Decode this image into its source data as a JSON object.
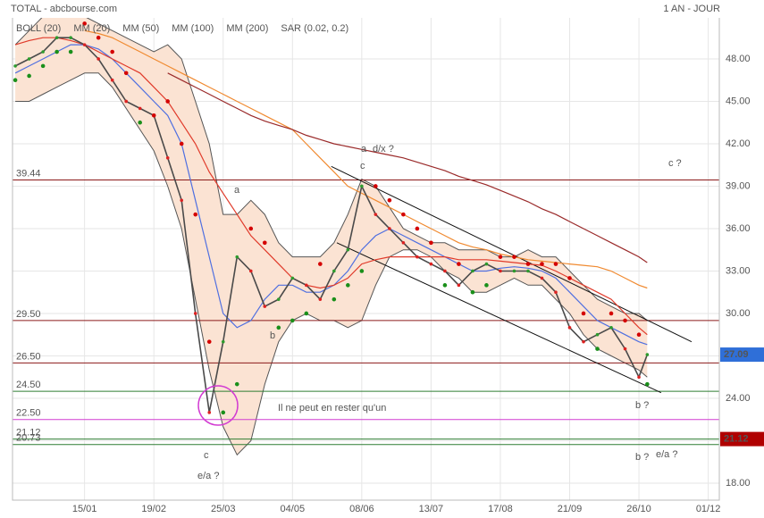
{
  "chart_data": {
    "type": "line",
    "title": "TOTAL - abcbourse.com",
    "subtitle": "1 AN - JOUR",
    "x": [
      -15,
      -10,
      -5,
      0,
      5,
      10,
      15,
      20,
      25,
      30,
      35,
      40,
      45,
      50,
      55,
      60,
      65,
      70,
      75,
      80,
      85,
      90,
      95,
      100,
      105,
      110,
      115,
      120,
      125,
      130,
      135,
      140,
      145,
      150,
      155,
      160,
      165,
      170,
      175,
      180,
      185,
      190,
      195,
      200,
      205,
      210,
      213
    ],
    "xlim": [
      -16,
      239
    ],
    "xticks": [
      {
        "value": 10,
        "label": "15/01"
      },
      {
        "value": 35,
        "label": "19/02"
      },
      {
        "value": 60,
        "label": "25/03"
      },
      {
        "value": 85,
        "label": "04/05"
      },
      {
        "value": 110,
        "label": "08/06"
      },
      {
        "value": 135,
        "label": "13/07"
      },
      {
        "value": 160,
        "label": "17/08"
      },
      {
        "value": 185,
        "label": "21/09"
      },
      {
        "value": 210,
        "label": "26/10"
      },
      {
        "value": 235,
        "label": "01/12"
      }
    ],
    "ylim": [
      16.8,
      51.85
    ],
    "yticks": [
      {
        "value": 18,
        "label": "18.00"
      },
      {
        "value": 21,
        "label": "21.00"
      },
      {
        "value": 24,
        "label": "24.00"
      },
      {
        "value": 27,
        "label": "27.00"
      },
      {
        "value": 30,
        "label": "30.00"
      },
      {
        "value": 33,
        "label": "33.00"
      },
      {
        "value": 36,
        "label": "36.00"
      },
      {
        "value": 39,
        "label": "39.00"
      },
      {
        "value": 42,
        "label": "42.00"
      },
      {
        "value": 45,
        "label": "45.00"
      },
      {
        "value": 48,
        "label": "48.00"
      }
    ],
    "grid": true,
    "series": [
      {
        "color": "#4a4a4a",
        "values": [
          47.5,
          48,
          48.5,
          49.5,
          49.5,
          49,
          48,
          46.5,
          45,
          44.5,
          44,
          41,
          38,
          30,
          23,
          28,
          34,
          33,
          30.5,
          31,
          32.5,
          32,
          31,
          33,
          34.5,
          39,
          37,
          36,
          35,
          34,
          33.5,
          33,
          32,
          33,
          33.5,
          33,
          33,
          33,
          32.5,
          31.5,
          29,
          28,
          28.5,
          29,
          27.5,
          25.5,
          27.09
        ]
      },
      {
        "name": "MM (20)",
        "color": "#4f6fe0",
        "values": [
          47,
          47.5,
          48,
          48.5,
          49,
          49,
          48.7,
          48,
          47,
          46,
          45,
          44,
          42,
          38,
          34,
          30,
          29,
          29.5,
          31,
          32,
          32,
          31.5,
          31.5,
          32,
          33,
          34.5,
          35.5,
          36,
          35.5,
          35,
          34.5,
          34,
          33.5,
          33,
          33,
          33.2,
          33.3,
          33.2,
          33,
          32.5,
          31.5,
          30.5,
          29.5,
          29,
          28.5,
          28,
          27.8
        ]
      },
      {
        "name": "MM (50)",
        "color": "#e03a2a",
        "values": [
          49,
          49.3,
          49.5,
          49.5,
          49.3,
          49,
          48.5,
          48,
          47.5,
          47,
          46,
          45,
          43.5,
          42,
          40,
          38.5,
          37,
          35.5,
          34.5,
          33.5,
          32.5,
          32,
          31.8,
          32,
          32.5,
          33.5,
          33.8,
          34,
          34,
          34,
          34,
          34,
          33.8,
          33.8,
          33.8,
          33.7,
          33.6,
          33.5,
          33.4,
          33,
          32.5,
          32,
          31.5,
          31,
          30,
          29,
          28.5
        ]
      },
      {
        "name": "MM (100)",
        "color": "#f08a30",
        "values": [
          null,
          null,
          null,
          null,
          null,
          50,
          49.8,
          49.5,
          49,
          48.5,
          48,
          47.5,
          47,
          46.5,
          46,
          45.5,
          45,
          44.5,
          44,
          43.5,
          43,
          42,
          41,
          40,
          39,
          38.5,
          38,
          37.5,
          37,
          36.5,
          36,
          35.5,
          35,
          34.7,
          34.5,
          34.2,
          34,
          33.8,
          33.7,
          33.6,
          33.5,
          33.4,
          33.3,
          33,
          32.5,
          32,
          31.8
        ]
      },
      {
        "name": "MM (200)",
        "color": "#9a2a2a",
        "values": [
          null,
          null,
          null,
          null,
          null,
          null,
          null,
          null,
          null,
          null,
          null,
          47,
          46.5,
          46,
          45.5,
          45,
          44.5,
          44,
          43.6,
          43.3,
          43,
          42.6,
          42.3,
          42,
          41.8,
          41.6,
          41.4,
          41.2,
          41,
          40.7,
          40.4,
          40.1,
          39.7,
          39.4,
          39.1,
          38.7,
          38.3,
          37.9,
          37.4,
          37,
          36.5,
          36,
          35.5,
          35,
          34.5,
          34,
          33.6
        ]
      }
    ],
    "bands": {
      "name": "BOLL (20)",
      "color": "#555555",
      "fill": "#fbe3d3",
      "upper": [
        49,
        50,
        51,
        51.5,
        51.5,
        51,
        50.5,
        50,
        49.5,
        49,
        48.5,
        49,
        48,
        45,
        42,
        37,
        37,
        38,
        37,
        35,
        34,
        34,
        34,
        35,
        37,
        39.5,
        39,
        37.5,
        36,
        35.5,
        35,
        35,
        34.5,
        34.5,
        34.5,
        34,
        34,
        34.5,
        34,
        34,
        33,
        32,
        31,
        30.5,
        30,
        30,
        29.5
      ],
      "lower": [
        45,
        45,
        45.5,
        46,
        46.5,
        47,
        47,
        46,
        44.5,
        43,
        41.5,
        39,
        36,
        31,
        26,
        22,
        20,
        21,
        25,
        28,
        29.5,
        30,
        29.5,
        29.5,
        29,
        29.5,
        32,
        34,
        34.5,
        34.5,
        34,
        33,
        32.5,
        31.5,
        31.5,
        32,
        32.5,
        32,
        32,
        31,
        30,
        28.5,
        27.5,
        27,
        26.5,
        26,
        25.5
      ]
    },
    "sar": {
      "name": "SAR (0.02, 0.2)",
      "color": "#d40000",
      "color_below": "#1a8f1a",
      "values": [
        46.5,
        46.8,
        47.5,
        48.5,
        48.5,
        50.5,
        49.5,
        48.5,
        47,
        43.5,
        44,
        45,
        42,
        37,
        28,
        23,
        25,
        36,
        35,
        29,
        29.5,
        30,
        33.5,
        31,
        32,
        33,
        39,
        38,
        37,
        36,
        35,
        32,
        33.5,
        31.5,
        32,
        34,
        34,
        33.5,
        33.5,
        33.5,
        32.5,
        30,
        27.5,
        30,
        29.5,
        28.5,
        25
      ]
    },
    "levels": [
      {
        "value": 39.44,
        "label": "39.44",
        "color": "#8b1a1a"
      },
      {
        "value": 29.5,
        "label": "29.50",
        "color": "#8b1a1a"
      },
      {
        "value": 26.5,
        "label": "26.50",
        "color": "#8b1a1a"
      },
      {
        "value": 24.5,
        "label": "24.50",
        "color": "#2e7d32"
      },
      {
        "value": 22.5,
        "label": "22.50",
        "color": "#d23cd2"
      },
      {
        "value": 21.12,
        "label": "21.12",
        "color": "#2e7d32"
      },
      {
        "value": 20.73,
        "label": "20.73",
        "color": "#2e7d32"
      }
    ],
    "trendlines": [
      {
        "x": [
          99,
          229
        ],
        "values": [
          40.4,
          28.0
        ],
        "color": "#111111"
      },
      {
        "x": [
          101,
          218
        ],
        "values": [
          35.0,
          24.4
        ],
        "color": "#111111"
      }
    ],
    "price_tags": [
      {
        "value": 27.09,
        "label": "27.09",
        "color": "#2f6fd8"
      },
      {
        "value": 21.12,
        "label": "21.12",
        "color": "#b00000"
      }
    ],
    "annotations": [
      {
        "text": "a",
        "color": "#1a237e"
      },
      {
        "text": "d/x ?",
        "color": "#b00000"
      },
      {
        "text": "c",
        "color": "#1a237e"
      },
      {
        "text": "c ?",
        "color": "#1a237e"
      },
      {
        "text": "a",
        "color": "#1a237e"
      },
      {
        "text": "b",
        "color": "#1a237e"
      },
      {
        "text": "b ?",
        "color": "#1a237e"
      },
      {
        "text": "b ?",
        "color": "#1a237e"
      },
      {
        "text": "e/a ?",
        "color": "#b00000"
      },
      {
        "text": "c",
        "color": "#b00000"
      },
      {
        "text": "e/a ?",
        "color": "#b00000"
      },
      {
        "text": "Il ne peut en rester qu'un",
        "color": "#d23cd2"
      }
    ]
  }
}
